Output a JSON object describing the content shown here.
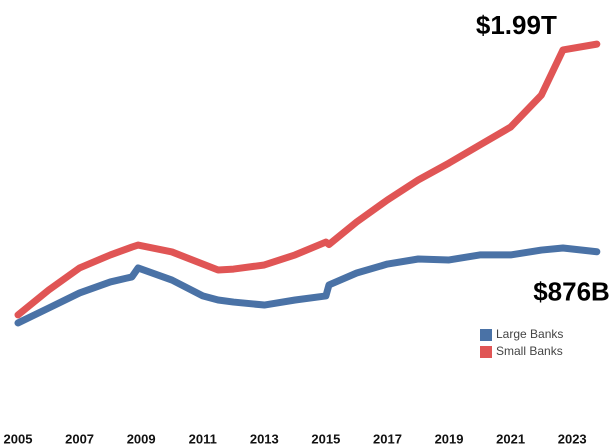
{
  "chart_data": {
    "type": "line",
    "annotations": [
      {
        "text": "$1.99T",
        "series": 1
      },
      {
        "text": "$876B",
        "series": 0
      }
    ],
    "x": [
      2005,
      2006,
      2007,
      2008,
      2008.7,
      2008.9,
      2010,
      2011,
      2011.5,
      2012,
      2013,
      2014,
      2015,
      2015.1,
      2016,
      2017,
      2018,
      2019,
      2020,
      2021,
      2022,
      2022.7,
      2023.8
    ],
    "series": [
      {
        "name": "Large Banks",
        "color": "#4a72a6",
        "values": [
          494,
          574,
          655,
          714,
          741,
          789,
          724,
          639,
          617,
          606,
          590,
          617,
          639,
          698,
          762,
          810,
          837,
          832,
          859,
          859,
          885,
          896,
          876
        ]
      },
      {
        "name": "Small Banks",
        "color": "#e05555",
        "values": [
          537,
          671,
          789,
          859,
          901,
          912,
          875,
          810,
          778,
          783,
          805,
          859,
          928,
          915,
          1036,
          1154,
          1261,
          1352,
          1449,
          1545,
          1717,
          1959,
          1990
        ]
      }
    ],
    "xlim": [
      2005,
      2024
    ],
    "xticks": [
      2005,
      2007,
      2009,
      2011,
      2013,
      2015,
      2017,
      2019,
      2021,
      2023
    ],
    "ylim": [
      0,
      2200
    ],
    "legend": "lower right"
  }
}
